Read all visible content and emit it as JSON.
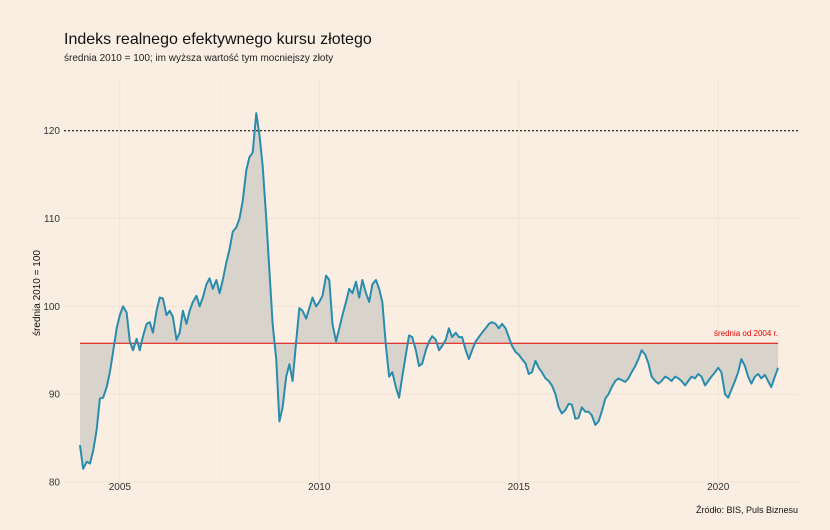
{
  "chart_data": {
    "type": "line",
    "title": "Indeks realnego efektywnego kursu złotego",
    "subtitle": "średnia 2010 = 100; im wyższa wartość tym mocniejszy złoty",
    "xlabel": "",
    "ylabel": "średnia 2010 = 100",
    "caption": "Źródło: BIS, Puls Biznesu",
    "xlim": [
      2003.6,
      2022.0
    ],
    "ylim": [
      80,
      126
    ],
    "x_ticks": [
      2005,
      2010,
      2015,
      2020
    ],
    "x_tick_labels": [
      "2005",
      "2010",
      "2015",
      "2020"
    ],
    "y_ticks": [
      80,
      90,
      100,
      110,
      120
    ],
    "y_tick_labels": [
      "80",
      "90",
      "100",
      "110",
      "120"
    ],
    "grid": true,
    "reference_lines": [
      {
        "value": 120,
        "style": "dotted",
        "color": "#000000"
      },
      {
        "value": 95.8,
        "style": "solid",
        "color": "#e00000",
        "label": "średnia od 2004 r.",
        "x_start": 2004.0,
        "x_end": 2021.5
      }
    ],
    "series": [
      {
        "color": "#2a8cad",
        "fill": "#d9d4cb",
        "points": [
          [
            2004.0,
            84.2
          ],
          [
            2004.08,
            81.5
          ],
          [
            2004.17,
            82.3
          ],
          [
            2004.25,
            82.1
          ],
          [
            2004.33,
            83.5
          ],
          [
            2004.42,
            86.0
          ],
          [
            2004.5,
            89.5
          ],
          [
            2004.58,
            89.6
          ],
          [
            2004.67,
            90.8
          ],
          [
            2004.75,
            92.5
          ],
          [
            2004.83,
            94.8
          ],
          [
            2004.92,
            97.5
          ],
          [
            2005.0,
            99.0
          ],
          [
            2005.08,
            100.0
          ],
          [
            2005.17,
            99.3
          ],
          [
            2005.25,
            96.0
          ],
          [
            2005.33,
            95.0
          ],
          [
            2005.42,
            96.3
          ],
          [
            2005.5,
            95.0
          ],
          [
            2005.58,
            96.6
          ],
          [
            2005.67,
            98.0
          ],
          [
            2005.75,
            98.2
          ],
          [
            2005.83,
            97.0
          ],
          [
            2005.92,
            99.5
          ],
          [
            2006.0,
            101.0
          ],
          [
            2006.08,
            100.9
          ],
          [
            2006.17,
            99.0
          ],
          [
            2006.25,
            99.5
          ],
          [
            2006.33,
            98.8
          ],
          [
            2006.42,
            96.2
          ],
          [
            2006.5,
            97.0
          ],
          [
            2006.58,
            99.5
          ],
          [
            2006.67,
            98.0
          ],
          [
            2006.75,
            99.5
          ],
          [
            2006.83,
            100.5
          ],
          [
            2006.92,
            101.2
          ],
          [
            2007.0,
            100.0
          ],
          [
            2007.08,
            101.0
          ],
          [
            2007.17,
            102.5
          ],
          [
            2007.25,
            103.2
          ],
          [
            2007.33,
            102.0
          ],
          [
            2007.42,
            103.0
          ],
          [
            2007.5,
            101.5
          ],
          [
            2007.58,
            103.0
          ],
          [
            2007.67,
            105.0
          ],
          [
            2007.75,
            106.5
          ],
          [
            2007.83,
            108.5
          ],
          [
            2007.92,
            109.0
          ],
          [
            2008.0,
            110.0
          ],
          [
            2008.08,
            112.0
          ],
          [
            2008.17,
            115.5
          ],
          [
            2008.25,
            117.0
          ],
          [
            2008.33,
            117.5
          ],
          [
            2008.42,
            122.0
          ],
          [
            2008.5,
            119.5
          ],
          [
            2008.58,
            116.0
          ],
          [
            2008.67,
            110.0
          ],
          [
            2008.75,
            104.0
          ],
          [
            2008.83,
            98.0
          ],
          [
            2008.92,
            94.0
          ],
          [
            2009.0,
            86.9
          ],
          [
            2009.08,
            88.5
          ],
          [
            2009.17,
            92.0
          ],
          [
            2009.25,
            93.4
          ],
          [
            2009.33,
            91.5
          ],
          [
            2009.42,
            96.0
          ],
          [
            2009.5,
            99.8
          ],
          [
            2009.58,
            99.5
          ],
          [
            2009.67,
            98.6
          ],
          [
            2009.75,
            99.8
          ],
          [
            2009.83,
            101.0
          ],
          [
            2009.92,
            100.0
          ],
          [
            2010.0,
            100.5
          ],
          [
            2010.08,
            101.2
          ],
          [
            2010.17,
            103.5
          ],
          [
            2010.25,
            103.0
          ],
          [
            2010.33,
            98.0
          ],
          [
            2010.42,
            96.0
          ],
          [
            2010.5,
            97.5
          ],
          [
            2010.58,
            99.0
          ],
          [
            2010.67,
            100.5
          ],
          [
            2010.75,
            102.0
          ],
          [
            2010.83,
            101.5
          ],
          [
            2010.92,
            102.8
          ],
          [
            2011.0,
            101.0
          ],
          [
            2011.08,
            103.0
          ],
          [
            2011.17,
            101.5
          ],
          [
            2011.25,
            100.5
          ],
          [
            2011.33,
            102.5
          ],
          [
            2011.42,
            103.0
          ],
          [
            2011.5,
            102.0
          ],
          [
            2011.58,
            100.5
          ],
          [
            2011.67,
            95.5
          ],
          [
            2011.75,
            92.0
          ],
          [
            2011.83,
            92.5
          ],
          [
            2011.92,
            90.8
          ],
          [
            2012.0,
            89.6
          ],
          [
            2012.08,
            92.0
          ],
          [
            2012.17,
            94.5
          ],
          [
            2012.25,
            96.7
          ],
          [
            2012.33,
            96.5
          ],
          [
            2012.42,
            95.0
          ],
          [
            2012.5,
            93.2
          ],
          [
            2012.58,
            93.5
          ],
          [
            2012.67,
            95.0
          ],
          [
            2012.75,
            96.0
          ],
          [
            2012.83,
            96.6
          ],
          [
            2012.92,
            96.2
          ],
          [
            2013.0,
            95.0
          ],
          [
            2013.08,
            95.5
          ],
          [
            2013.17,
            96.2
          ],
          [
            2013.25,
            97.5
          ],
          [
            2013.33,
            96.5
          ],
          [
            2013.42,
            97.0
          ],
          [
            2013.5,
            96.5
          ],
          [
            2013.58,
            96.5
          ],
          [
            2013.67,
            95.0
          ],
          [
            2013.75,
            94.0
          ],
          [
            2013.83,
            95.0
          ],
          [
            2013.92,
            96.0
          ],
          [
            2014.0,
            96.5
          ],
          [
            2014.08,
            97.0
          ],
          [
            2014.17,
            97.5
          ],
          [
            2014.25,
            98.0
          ],
          [
            2014.33,
            98.2
          ],
          [
            2014.42,
            98.0
          ],
          [
            2014.5,
            97.5
          ],
          [
            2014.58,
            98.0
          ],
          [
            2014.67,
            97.5
          ],
          [
            2014.75,
            96.5
          ],
          [
            2014.83,
            95.5
          ],
          [
            2014.92,
            94.8
          ],
          [
            2015.0,
            94.5
          ],
          [
            2015.08,
            94.0
          ],
          [
            2015.17,
            93.5
          ],
          [
            2015.25,
            92.3
          ],
          [
            2015.33,
            92.5
          ],
          [
            2015.42,
            93.8
          ],
          [
            2015.5,
            93.0
          ],
          [
            2015.58,
            92.5
          ],
          [
            2015.67,
            91.8
          ],
          [
            2015.75,
            91.5
          ],
          [
            2015.83,
            91.0
          ],
          [
            2015.92,
            90.0
          ],
          [
            2016.0,
            88.5
          ],
          [
            2016.08,
            87.8
          ],
          [
            2016.17,
            88.2
          ],
          [
            2016.25,
            88.9
          ],
          [
            2016.33,
            88.8
          ],
          [
            2016.42,
            87.2
          ],
          [
            2016.5,
            87.3
          ],
          [
            2016.58,
            88.5
          ],
          [
            2016.67,
            88.0
          ],
          [
            2016.75,
            88.0
          ],
          [
            2016.83,
            87.6
          ],
          [
            2016.92,
            86.5
          ],
          [
            2017.0,
            86.9
          ],
          [
            2017.08,
            88.0
          ],
          [
            2017.17,
            89.5
          ],
          [
            2017.25,
            90.0
          ],
          [
            2017.33,
            90.8
          ],
          [
            2017.42,
            91.5
          ],
          [
            2017.5,
            91.8
          ],
          [
            2017.58,
            91.6
          ],
          [
            2017.67,
            91.4
          ],
          [
            2017.75,
            91.8
          ],
          [
            2017.83,
            92.5
          ],
          [
            2017.92,
            93.2
          ],
          [
            2018.0,
            94.0
          ],
          [
            2018.08,
            95.0
          ],
          [
            2018.17,
            94.5
          ],
          [
            2018.25,
            93.5
          ],
          [
            2018.33,
            92.0
          ],
          [
            2018.42,
            91.5
          ],
          [
            2018.5,
            91.2
          ],
          [
            2018.58,
            91.5
          ],
          [
            2018.67,
            92.0
          ],
          [
            2018.75,
            91.8
          ],
          [
            2018.83,
            91.5
          ],
          [
            2018.92,
            92.0
          ],
          [
            2019.0,
            91.8
          ],
          [
            2019.08,
            91.5
          ],
          [
            2019.17,
            91.0
          ],
          [
            2019.25,
            91.5
          ],
          [
            2019.33,
            92.0
          ],
          [
            2019.42,
            91.8
          ],
          [
            2019.5,
            92.3
          ],
          [
            2019.58,
            92.0
          ],
          [
            2019.67,
            91.0
          ],
          [
            2019.75,
            91.5
          ],
          [
            2019.83,
            92.0
          ],
          [
            2019.92,
            92.5
          ],
          [
            2020.0,
            93.0
          ],
          [
            2020.08,
            92.5
          ],
          [
            2020.17,
            90.0
          ],
          [
            2020.25,
            89.6
          ],
          [
            2020.33,
            90.5
          ],
          [
            2020.42,
            91.5
          ],
          [
            2020.5,
            92.5
          ],
          [
            2020.58,
            94.0
          ],
          [
            2020.67,
            93.2
          ],
          [
            2020.75,
            92.0
          ],
          [
            2020.83,
            91.2
          ],
          [
            2020.92,
            92.0
          ],
          [
            2021.0,
            92.3
          ],
          [
            2021.08,
            91.8
          ],
          [
            2021.17,
            92.2
          ],
          [
            2021.25,
            91.5
          ],
          [
            2021.33,
            90.8
          ],
          [
            2021.42,
            92.0
          ],
          [
            2021.5,
            93.0
          ]
        ]
      }
    ]
  }
}
